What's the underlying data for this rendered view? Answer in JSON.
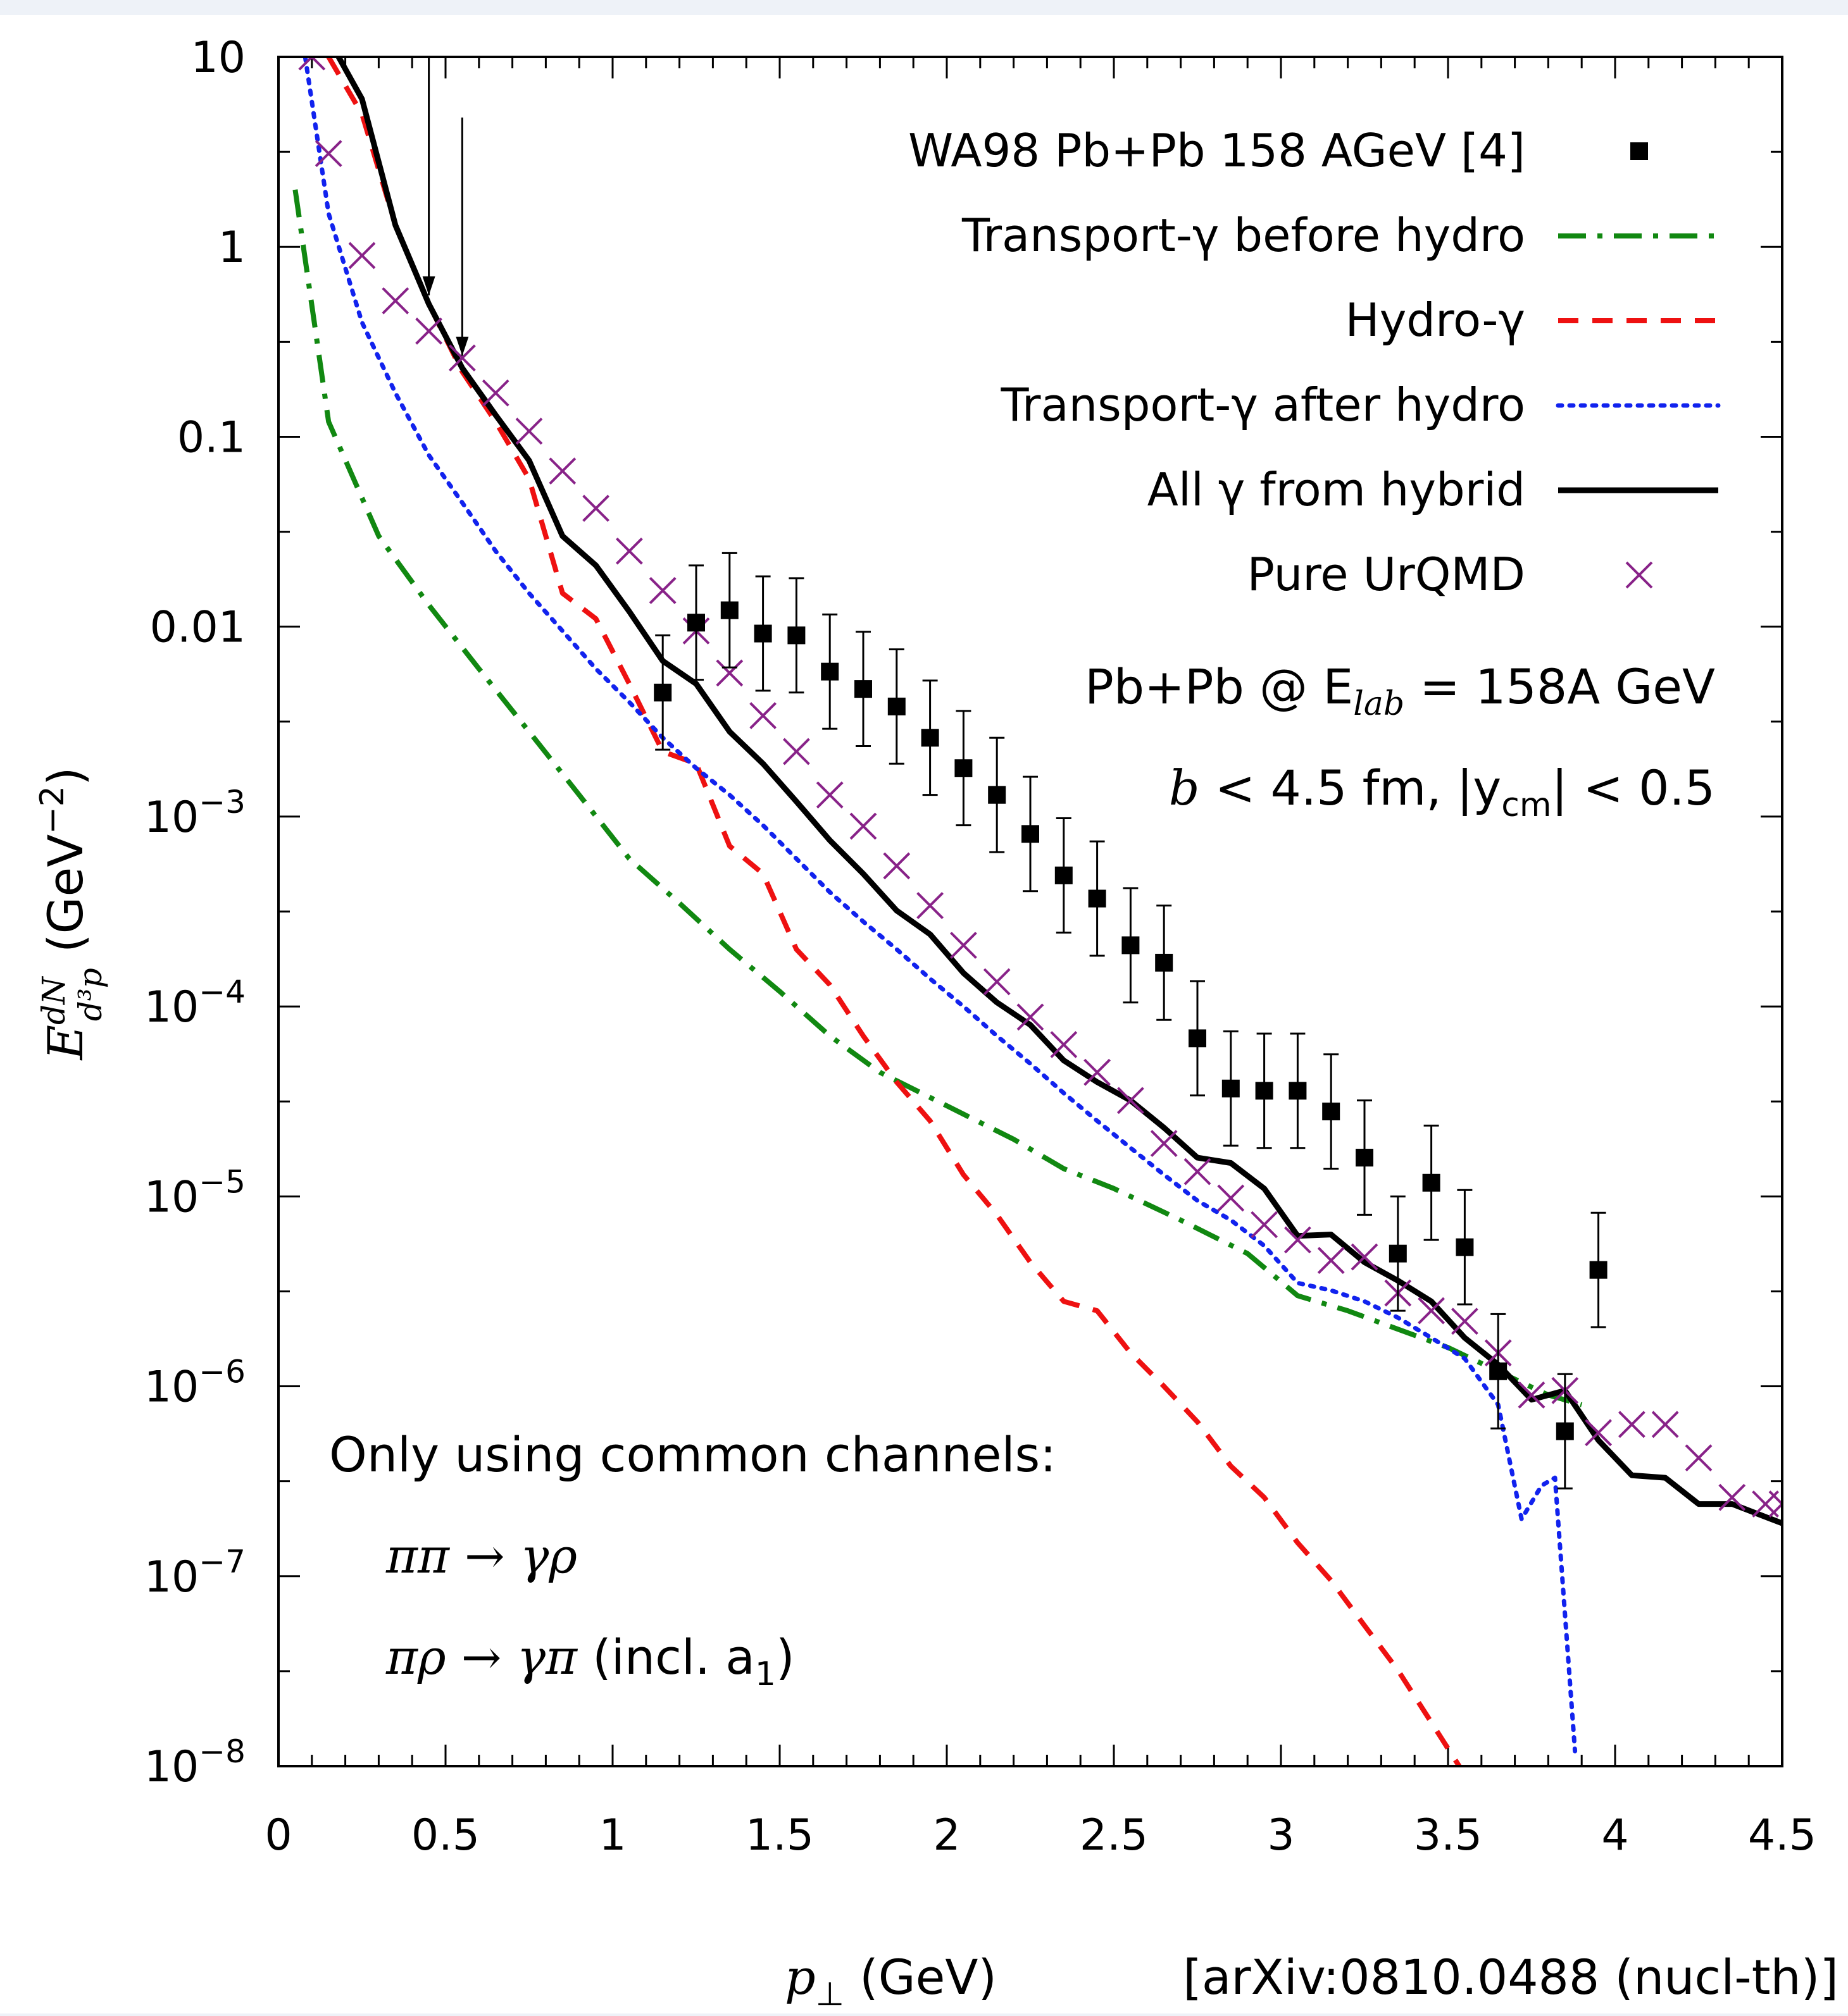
{
  "chart_data": {
    "type": "line",
    "xlabel": "p⊥ (GeV)",
    "ylabel": "E dN/d³p (GeV⁻²)",
    "x_ticks": [
      0,
      0.5,
      1,
      1.5,
      2,
      2.5,
      3,
      3.5,
      4,
      4.5
    ],
    "x_tick_labels": [
      "0",
      "0.5",
      "1",
      "1.5",
      "2",
      "2.5",
      "3",
      "3.5",
      "4",
      "4.5"
    ],
    "xlim": [
      0,
      4.5
    ],
    "ylim": [
      1e-08,
      10
    ],
    "y_scale": "log",
    "y_tick_labels": [
      {
        "value": 10,
        "base": "10",
        "exp": ""
      },
      {
        "value": 1,
        "base": "1",
        "exp": ""
      },
      {
        "value": 0.1,
        "base": "0.1",
        "exp": ""
      },
      {
        "value": 0.01,
        "base": "0.01",
        "exp": ""
      },
      {
        "value": 0.001,
        "base": "10",
        "exp": "−3"
      },
      {
        "value": 0.0001,
        "base": "10",
        "exp": "−4"
      },
      {
        "value": 1e-05,
        "base": "10",
        "exp": "−5"
      },
      {
        "value": 1e-06,
        "base": "10",
        "exp": "−6"
      },
      {
        "value": 1e-07,
        "base": "10",
        "exp": "−7"
      },
      {
        "value": 1e-08,
        "base": "10",
        "exp": "−8"
      }
    ],
    "legend_placement": "top-right",
    "legend": [
      {
        "label": "WA98 Pb+Pb 158 AGeV [4]",
        "style": "square",
        "color": "#000000"
      },
      {
        "label": "Transport-γ before hydro",
        "style": "dashdot",
        "color": "#118811"
      },
      {
        "label": "Hydro-γ",
        "style": "dashed",
        "color": "#ee1111"
      },
      {
        "label": "Transport-γ after hydro",
        "style": "dotted",
        "color": "#1122ee"
      },
      {
        "label": "All γ from hybrid",
        "style": "solid",
        "color": "#000000"
      },
      {
        "label": "Pure UrQMD",
        "style": "cross",
        "color": "#882288"
      }
    ],
    "series": [
      {
        "name": "Transport-γ before hydro",
        "color": "#118811",
        "x": [
          0.05,
          0.15,
          0.3,
          0.45,
          0.6,
          0.75,
          0.9,
          1.05,
          1.2,
          1.35,
          1.5,
          1.65,
          1.8,
          2.0,
          2.2,
          2.35,
          2.5,
          2.7,
          2.9,
          3.05,
          3.2,
          3.35,
          3.5,
          3.65,
          3.8,
          3.9
        ],
        "y": [
          2.0,
          0.12,
          0.03,
          0.013,
          0.006,
          0.0028,
          0.0013,
          0.0006,
          0.00035,
          0.0002,
          0.00012,
          7e-05,
          4.5e-05,
          3e-05,
          2e-05,
          1.4e-05,
          1.1e-05,
          7.5e-06,
          5e-06,
          3e-06,
          2.5e-06,
          2e-06,
          1.6e-06,
          1.2e-06,
          9e-07,
          8e-07
        ]
      },
      {
        "name": "Hydro-γ",
        "color": "#ee1111",
        "x": [
          0.15,
          0.25,
          0.35,
          0.45,
          0.55,
          0.65,
          0.75,
          0.8,
          0.85,
          0.95,
          1.05,
          1.15,
          1.25,
          1.35,
          1.45,
          1.55,
          1.65,
          1.75,
          1.85,
          1.95,
          2.05,
          2.15,
          2.25,
          2.35,
          2.45,
          2.55,
          2.65,
          2.75,
          2.85,
          2.95,
          3.05,
          3.15,
          3.25,
          3.35,
          3.45,
          3.55
        ],
        "y": [
          10,
          5.0,
          1.3,
          0.5,
          0.22,
          0.12,
          0.06,
          0.03,
          0.015,
          0.011,
          0.005,
          0.0022,
          0.0019,
          0.0007,
          0.0005,
          0.0002,
          0.00013,
          7e-05,
          4e-05,
          2.5e-05,
          1.3e-05,
          8e-06,
          4.5e-06,
          2.8e-06,
          2.5e-06,
          1.5e-06,
          1e-06,
          6.5e-07,
          3.8e-07,
          2.6e-07,
          1.5e-07,
          9.5e-08,
          5.5e-08,
          3.2e-08,
          1.7e-08,
          9e-09
        ]
      },
      {
        "name": "Transport-γ after hydro",
        "color": "#1122ee",
        "x": [
          0.08,
          0.15,
          0.25,
          0.35,
          0.45,
          0.55,
          0.65,
          0.75,
          0.85,
          0.95,
          1.05,
          1.15,
          1.25,
          1.35,
          1.45,
          1.55,
          1.65,
          1.75,
          1.85,
          1.95,
          2.05,
          2.15,
          2.25,
          2.35,
          2.45,
          2.55,
          2.65,
          2.75,
          2.85,
          2.95,
          3.05,
          3.15,
          3.25,
          3.35,
          3.45,
          3.55,
          3.65,
          3.72,
          3.78,
          3.82,
          3.88
        ],
        "y": [
          10,
          1.5,
          0.4,
          0.17,
          0.08,
          0.045,
          0.025,
          0.015,
          0.0095,
          0.006,
          0.004,
          0.0026,
          0.0018,
          0.0013,
          0.0009,
          0.0006,
          0.0004,
          0.00028,
          0.0002,
          0.00014,
          0.0001,
          7e-05,
          5e-05,
          3.5e-05,
          2.5e-05,
          1.8e-05,
          1.3e-05,
          9.5e-06,
          7.5e-06,
          5.5e-06,
          3.5e-06,
          3.2e-06,
          2.8e-06,
          2.3e-06,
          1.8e-06,
          1.4e-06,
          8e-07,
          2e-07,
          3e-07,
          3.3e-07,
          1.2e-08
        ]
      },
      {
        "name": "All γ from hybrid",
        "color": "#000000",
        "x": [
          0.18,
          0.25,
          0.35,
          0.45,
          0.55,
          0.65,
          0.75,
          0.85,
          0.95,
          1.05,
          1.15,
          1.25,
          1.35,
          1.45,
          1.55,
          1.65,
          1.75,
          1.85,
          1.95,
          2.05,
          2.15,
          2.25,
          2.35,
          2.45,
          2.55,
          2.65,
          2.75,
          2.85,
          2.95,
          3.05,
          3.15,
          3.25,
          3.35,
          3.45,
          3.55,
          3.65,
          3.75,
          3.85,
          3.95,
          4.05,
          4.15,
          4.25,
          4.35,
          4.5
        ],
        "y": [
          10,
          6.0,
          1.3,
          0.5,
          0.23,
          0.13,
          0.075,
          0.03,
          0.021,
          0.012,
          0.0066,
          0.005,
          0.0028,
          0.0019,
          0.0012,
          0.00075,
          0.0005,
          0.00032,
          0.00024,
          0.00015,
          0.000105,
          8e-05,
          5.2e-05,
          4e-05,
          3.2e-05,
          2.3e-05,
          1.6e-05,
          1.5e-05,
          1.1e-05,
          6.2e-06,
          6.3e-06,
          4.5e-06,
          3.6e-06,
          2.8e-06,
          1.8e-06,
          1.3e-06,
          8.5e-07,
          9.5e-07,
          5.2e-07,
          3.4e-07,
          3.3e-07,
          2.4e-07,
          2.4e-07,
          1.9e-07
        ]
      },
      {
        "name": "Pure UrQMD",
        "color": "#882288",
        "x": [
          0.1,
          0.15,
          0.25,
          0.35,
          0.45,
          0.55,
          0.65,
          0.75,
          0.85,
          0.95,
          1.05,
          1.15,
          1.25,
          1.35,
          1.45,
          1.55,
          1.65,
          1.75,
          1.85,
          1.95,
          2.05,
          2.15,
          2.25,
          2.35,
          2.45,
          2.55,
          2.65,
          2.75,
          2.85,
          2.95,
          3.05,
          3.15,
          3.25,
          3.35,
          3.45,
          3.55,
          3.65,
          3.75,
          3.85,
          3.95,
          4.05,
          4.15,
          4.25,
          4.35,
          4.45,
          4.5
        ],
        "y": [
          10,
          3.1,
          0.9,
          0.52,
          0.36,
          0.26,
          0.17,
          0.107,
          0.066,
          0.042,
          0.025,
          0.0155,
          0.0095,
          0.0057,
          0.0034,
          0.0022,
          0.0013,
          0.00089,
          0.00055,
          0.00034,
          0.00021,
          0.000135,
          8.8e-05,
          6.3e-05,
          4.5e-05,
          3.2e-05,
          1.9e-05,
          1.35e-05,
          9.8e-06,
          7.1e-06,
          5.9e-06,
          4.6e-06,
          4.8e-06,
          3.1e-06,
          2.5e-06,
          2.2e-06,
          1.5e-06,
          9e-07,
          9.5e-07,
          5.7e-07,
          6.3e-07,
          6.3e-07,
          4.2e-07,
          2.6e-07,
          2.4e-07,
          2.4e-07
        ]
      },
      {
        "name": "WA98 Pb+Pb 158 AGeV [4]",
        "color": "#000000",
        "x": [
          1.15,
          1.25,
          1.35,
          1.45,
          1.55,
          1.65,
          1.75,
          1.85,
          1.95,
          2.05,
          2.15,
          2.25,
          2.35,
          2.45,
          2.55,
          2.65,
          2.75,
          2.85,
          2.95,
          3.05,
          3.15,
          3.25,
          3.35,
          3.45,
          3.55,
          3.65,
          3.85,
          3.95
        ],
        "y": [
          0.0045,
          0.0105,
          0.0122,
          0.0092,
          0.009,
          0.0058,
          0.0047,
          0.0038,
          0.0026,
          0.0018,
          0.0013,
          0.00081,
          0.00049,
          0.00037,
          0.00021,
          0.00017,
          6.8e-05,
          3.7e-05,
          3.6e-05,
          3.6e-05,
          2.8e-05,
          1.6e-05,
          5e-06,
          1.18e-05,
          5.4e-06,
          1.2e-06,
          5.8e-07,
          4.1e-06
        ],
        "upper_limit_x": [
          0.45,
          0.55
        ],
        "upper_limit_y": [
          10,
          4.8
        ]
      }
    ]
  },
  "annotations": {
    "reaction_system": "Pb+Pb @ E",
    "reaction_subscript": "lab",
    "reaction_energy": " = 158A GeV",
    "cuts_b": "b",
    "cuts_rest": " < 4.5 fm, |y",
    "cuts_subscript": "cm",
    "cuts_tail": "| < 0.5",
    "channels_title": "Only using common channels:",
    "channel_1": "ππ → γρ",
    "channel_2_math": "πρ → γπ",
    "channel_2_text": " (incl. a",
    "channel_2_sub": "1",
    "channel_2_close": ")",
    "xaxis_title_math": "p",
    "xaxis_title_sub": "⊥",
    "xaxis_title_unit": " (GeV)",
    "ylabel_E": "E",
    "ylabel_num": "dN",
    "ylabel_den": "d³p",
    "ylabel_unit": " (GeV",
    "ylabel_exp": "−2",
    "ylabel_close": ")",
    "reference": "[arXiv:0810.0488 (nucl-th)]"
  }
}
